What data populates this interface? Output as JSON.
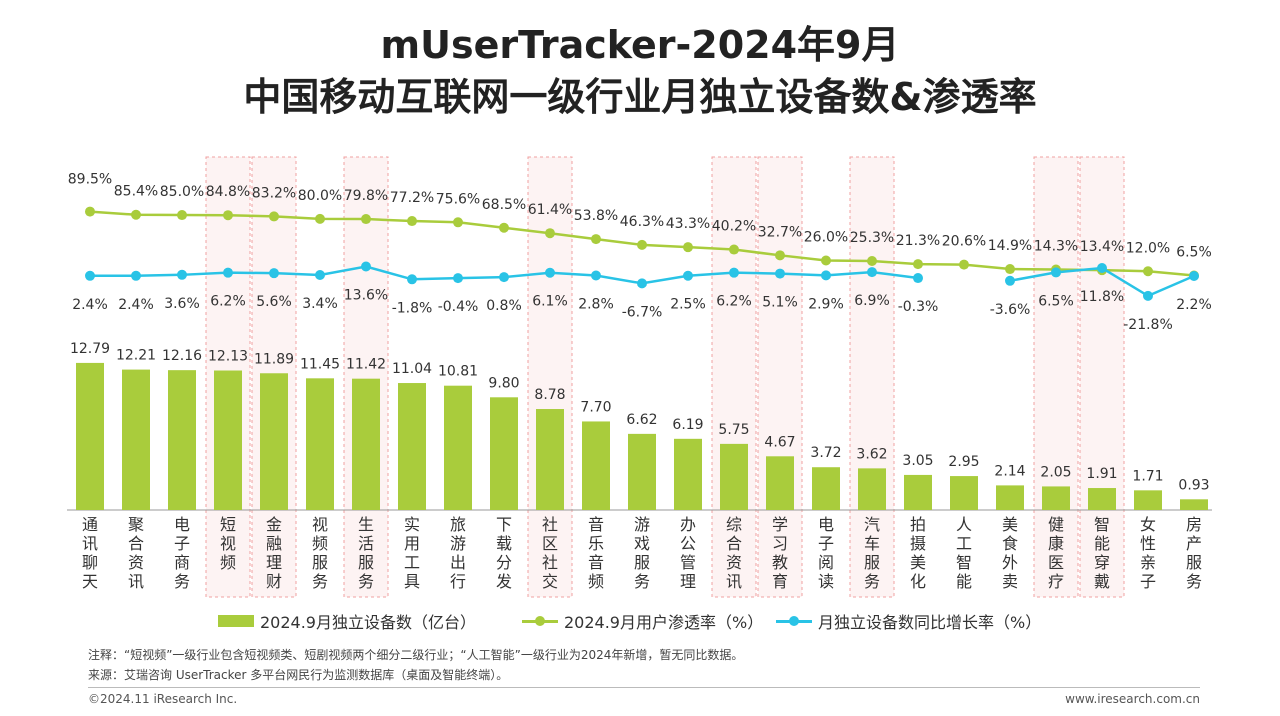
{
  "title_line1": "mUserTracker-2024年9月",
  "title_line2": "中国移动互联网一级行业月独立设备数&渗透率",
  "colors": {
    "bar": "#a9cc3c",
    "penetration": "#a9cc3c",
    "growth": "#29c3e6",
    "highlight_border": "#f0a0a0",
    "highlight_fill": "#fdf3f3"
  },
  "chart_data": {
    "type": "bar",
    "categories": [
      "通讯聊天",
      "聚合资讯",
      "电子商务",
      "短视频",
      "金融理财",
      "视频服务",
      "生活服务",
      "实用工具",
      "旅游出行",
      "下载分发",
      "社区社交",
      "音乐音频",
      "游戏服务",
      "办公管理",
      "综合资讯",
      "学习教育",
      "电子阅读",
      "汽车服务",
      "拍摄美化",
      "人工智能",
      "美食外卖",
      "健康医疗",
      "智能穿戴",
      "女性亲子",
      "房产服务"
    ],
    "highlighted": [
      "短视频",
      "金融理财",
      "生活服务",
      "社区社交",
      "综合资讯",
      "学习教育",
      "汽车服务",
      "健康医疗",
      "智能穿戴"
    ],
    "series": [
      {
        "name": "2024.9月独立设备数（亿台）",
        "type": "bar",
        "values": [
          12.79,
          12.21,
          12.16,
          12.13,
          11.89,
          11.45,
          11.42,
          11.04,
          10.81,
          9.8,
          8.78,
          7.7,
          6.62,
          6.19,
          5.75,
          4.67,
          3.72,
          3.62,
          3.05,
          2.95,
          2.14,
          2.05,
          1.91,
          1.71,
          0.93
        ],
        "labels": [
          "12.79",
          "12.21",
          "12.16",
          "12.13",
          "11.89",
          "11.45",
          "11.42",
          "11.04",
          "10.81",
          "9.80",
          "8.78",
          "7.70",
          "6.62",
          "6.19",
          "5.75",
          "4.67",
          "3.72",
          "3.62",
          "3.05",
          "2.95",
          "2.14",
          "2.05",
          "1.91",
          "1.71",
          "0.93"
        ]
      },
      {
        "name": "2024.9月用户渗透率（%）",
        "type": "line",
        "values": [
          89.5,
          85.4,
          85.0,
          84.8,
          83.2,
          80.0,
          79.8,
          77.2,
          75.6,
          68.5,
          61.4,
          53.8,
          46.3,
          43.3,
          40.2,
          32.7,
          26.0,
          25.3,
          21.3,
          20.6,
          14.9,
          14.3,
          13.4,
          12.0,
          6.5
        ],
        "labels": [
          "89.5%",
          "85.4%",
          "85.0%",
          "84.8%",
          "83.2%",
          "80.0%",
          "79.8%",
          "77.2%",
          "75.6%",
          "68.5%",
          "61.4%",
          "53.8%",
          "46.3%",
          "43.3%",
          "40.2%",
          "32.7%",
          "26.0%",
          "25.3%",
          "21.3%",
          "20.6%",
          "14.9%",
          "14.3%",
          "13.4%",
          "12.0%",
          "6.5%"
        ]
      },
      {
        "name": "月独立设备数同比增长率（%）",
        "type": "line",
        "values": [
          2.4,
          2.4,
          3.6,
          6.2,
          5.6,
          3.4,
          13.6,
          -1.8,
          -0.4,
          0.8,
          6.1,
          2.8,
          -6.7,
          2.5,
          6.2,
          5.1,
          2.9,
          6.9,
          -0.3,
          null,
          -3.6,
          6.5,
          11.8,
          -21.8,
          2.2
        ],
        "labels": [
          "2.4%",
          "2.4%",
          "3.6%",
          "6.2%",
          "5.6%",
          "3.4%",
          "13.6%",
          "-1.8%",
          "-0.4%",
          "0.8%",
          "6.1%",
          "2.8%",
          "-6.7%",
          "2.5%",
          "6.2%",
          "5.1%",
          "2.9%",
          "6.9%",
          "-0.3%",
          "",
          "-3.6%",
          "6.5%",
          "11.8%",
          "-21.8%",
          "2.2%"
        ]
      }
    ]
  },
  "legend": {
    "bar": "2024.9月独立设备数（亿台）",
    "penetration": "2024.9月用户渗透率（%）",
    "growth": "月独立设备数同比增长率（%）"
  },
  "note1": "注释：“短视频”一级行业包含短视频类、短剧视频两个细分二级行业；“人工智能”一级行业为2024年新增，暂无同比数据。",
  "note2": "来源：艾瑞咨询 UserTracker 多平台网民行为监测数据库（桌面及智能终端）。",
  "footer_left": "©2024.11 iResearch Inc.",
  "footer_right": "www.iresearch.com.cn"
}
